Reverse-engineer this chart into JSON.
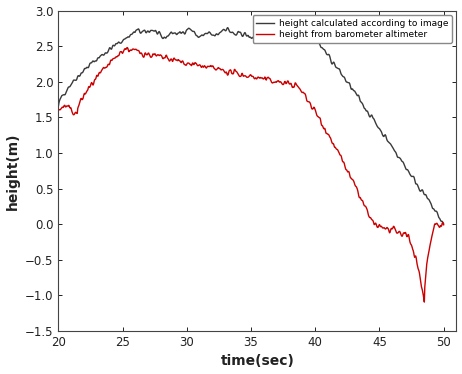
{
  "title": "",
  "xlabel": "time(sec)",
  "ylabel": "height(m)",
  "xlim": [
    20,
    51
  ],
  "ylim": [
    -1.5,
    3.0
  ],
  "xticks": [
    20,
    25,
    30,
    35,
    40,
    45,
    50
  ],
  "yticks": [
    -1.5,
    -1.0,
    -0.5,
    0.0,
    0.5,
    1.0,
    1.5,
    2.0,
    2.5,
    3.0
  ],
  "legend_label_gray": "height calculated according to image",
  "legend_label_red": "height from barometer altimeter",
  "gray_color": "#3a3a3a",
  "red_color": "#cc0000",
  "background_color": "#ffffff",
  "linewidth": 1.0,
  "figsize": [
    4.62,
    3.74
  ],
  "dpi": 100
}
